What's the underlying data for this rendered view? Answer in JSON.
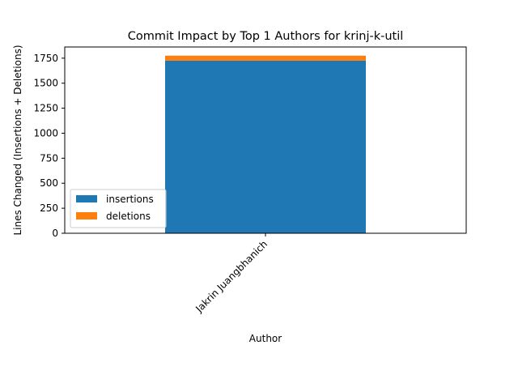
{
  "chart_data": {
    "type": "bar",
    "stacked": true,
    "title": "Commit Impact by Top 1 Authors for krinj-k-util",
    "xlabel": "Author",
    "ylabel": "Lines Changed (Insertions + Deletions)",
    "categories": [
      "Jakrin Juangbhanich"
    ],
    "series": [
      {
        "name": "insertions",
        "values": [
          1725
        ],
        "color": "#1f77b4"
      },
      {
        "name": "deletions",
        "values": [
          50
        ],
        "color": "#ff7f0e"
      }
    ],
    "ylim": [
      0,
      1862
    ],
    "yticks": [
      0,
      250,
      500,
      750,
      1000,
      1250,
      1500,
      1750
    ],
    "ytick_labels": [
      "0",
      "250",
      "500",
      "750",
      "1000",
      "1250",
      "1500",
      "1750"
    ],
    "legend": {
      "position": "lower-left"
    },
    "grid": false
  }
}
